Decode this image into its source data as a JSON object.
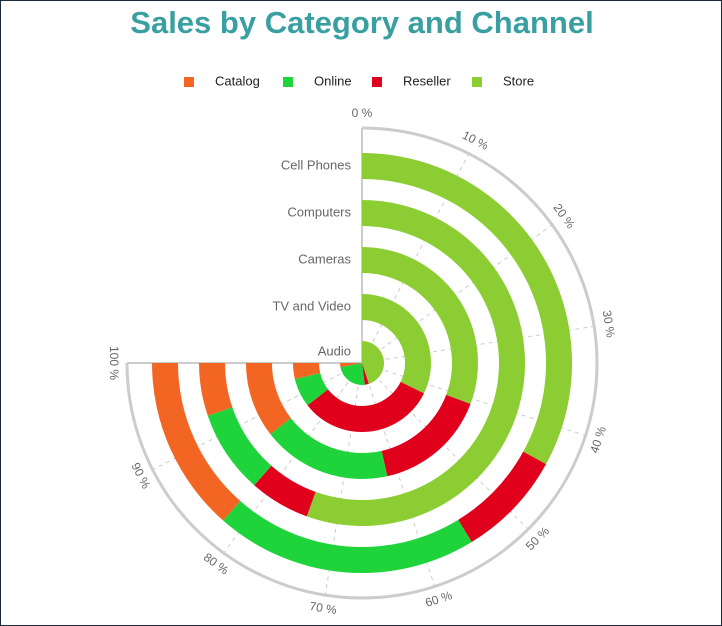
{
  "chart_data": {
    "type": "radial_stacked_bar",
    "title": "Sales by Category and Channel",
    "categories": [
      "Audio",
      "TV and Video",
      "Cameras",
      "Computers",
      "Cell Phones"
    ],
    "series": [
      {
        "name": "Store",
        "color": "#8ccd34",
        "values": [
          60,
          43,
          41,
          74,
          44
        ]
      },
      {
        "name": "Reseller",
        "color": "#e0001b",
        "values": [
          4,
          43,
          21,
          8,
          11
        ]
      },
      {
        "name": "Online",
        "color": "#1fd43b",
        "values": [
          32,
          9,
          24,
          11,
          27
        ]
      },
      {
        "name": "Catalog",
        "color": "#f26522",
        "values": [
          4,
          5,
          14,
          7,
          18
        ]
      }
    ],
    "xlim": [
      0,
      100
    ],
    "xticks": [
      {
        "value": 0,
        "label": "0 %"
      },
      {
        "value": 10,
        "label": "10 %"
      },
      {
        "value": 20,
        "label": "20 %"
      },
      {
        "value": 30,
        "label": "30 %"
      },
      {
        "value": 40,
        "label": "40 %"
      },
      {
        "value": 50,
        "label": "50 %"
      },
      {
        "value": 60,
        "label": "60 %"
      },
      {
        "value": 70,
        "label": "70 %"
      },
      {
        "value": 80,
        "label": "80 %"
      },
      {
        "value": 90,
        "label": "90 %"
      },
      {
        "value": 100,
        "label": "100 %"
      }
    ],
    "grid": true
  }
}
